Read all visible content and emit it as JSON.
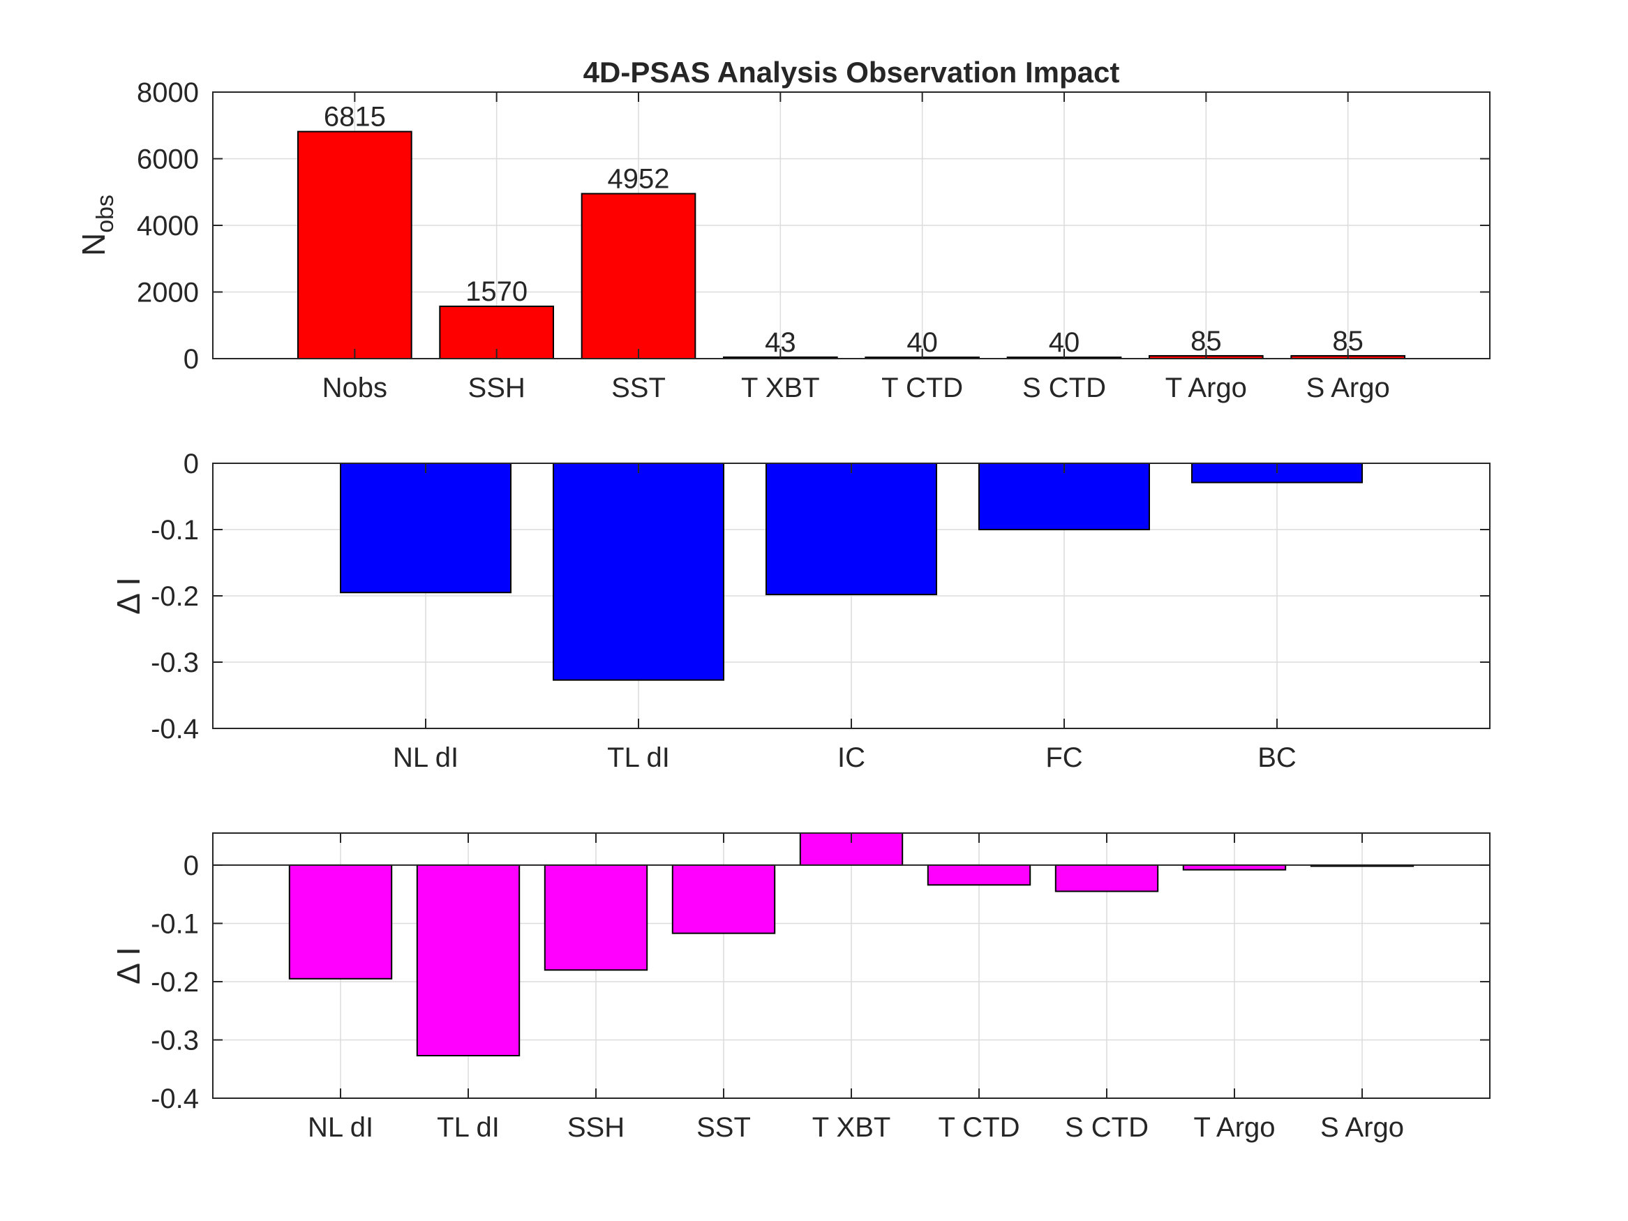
{
  "chart_data": [
    {
      "type": "bar",
      "title": "4D-PSAS Analysis Observation Impact",
      "ylabel": "N",
      "ylabel_subscript": "obs",
      "xlabel": "",
      "categories": [
        "Nobs",
        "SSH",
        "SST",
        "T XBT",
        "T CTD",
        "S CTD",
        "T Argo",
        "S Argo"
      ],
      "values": [
        6815,
        1570,
        4952,
        43,
        40,
        40,
        85,
        85
      ],
      "data_labels": [
        "6815",
        "1570",
        "4952",
        "43",
        "40",
        "40",
        "85",
        "85"
      ],
      "ylim": [
        0,
        8000
      ],
      "yticks": [
        "0",
        "2000",
        "4000",
        "6000",
        "8000"
      ],
      "ytick_values": [
        0,
        2000,
        4000,
        6000,
        8000
      ],
      "grid": true,
      "color": "#ff0000"
    },
    {
      "type": "bar",
      "title": "",
      "ylabel": "Δ I",
      "xlabel": "",
      "categories": [
        "NL dI",
        "TL dI",
        "IC",
        "FC",
        "BC"
      ],
      "values": [
        -0.195,
        -0.327,
        -0.198,
        -0.1,
        -0.029
      ],
      "ylim": [
        -0.4,
        0
      ],
      "yticks": [
        "-0.4",
        "-0.3",
        "-0.2",
        "-0.1",
        "0"
      ],
      "ytick_values": [
        -0.4,
        -0.3,
        -0.2,
        -0.1,
        0
      ],
      "grid": true,
      "color": "#0000ff"
    },
    {
      "type": "bar",
      "title": "",
      "ylabel": "Δ I",
      "xlabel": "",
      "categories": [
        "NL dI",
        "TL dI",
        "SSH",
        "SST",
        "T XBT",
        "T CTD",
        "S CTD",
        "T Argo",
        "S Argo"
      ],
      "values": [
        -0.195,
        -0.327,
        -0.18,
        -0.117,
        0.06,
        -0.034,
        -0.045,
        -0.008,
        -0.001
      ],
      "ylim": [
        -0.4,
        0.055
      ],
      "yticks": [
        "-0.4",
        "-0.3",
        "-0.2",
        "-0.1",
        "0"
      ],
      "ytick_values": [
        -0.4,
        -0.3,
        -0.2,
        -0.1,
        0
      ],
      "grid": true,
      "color": "#ff00ff"
    }
  ]
}
